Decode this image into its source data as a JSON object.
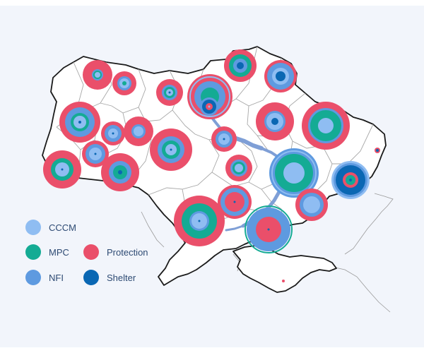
{
  "colors": {
    "background": "#f2f5fb",
    "land": "#ffffff",
    "border": "#1a1a1a",
    "oblast_border": "#a7a7a7",
    "outside_border": "#9a9a9a",
    "river": "#7f9fd6",
    "cccm": "#8fbdf2",
    "mpc": "#14ab94",
    "nfi": "#5e9ae0",
    "protection": "#ea4f6a",
    "shelter": "#0a67b3"
  },
  "legend": {
    "cccm": {
      "label": "CCCM",
      "color_key": "cccm",
      "icon": "circle"
    },
    "mpc": {
      "label": "MPC",
      "color_key": "mpc",
      "icon": "circle"
    },
    "protection": {
      "label": "Protection",
      "color_key": "protection",
      "icon": "circle"
    },
    "nfi": {
      "label": "NFI",
      "color_key": "nfi",
      "icon": "circle"
    },
    "shelter": {
      "label": "Shelter",
      "color_key": "shelter",
      "icon": "circle"
    }
  }
}
